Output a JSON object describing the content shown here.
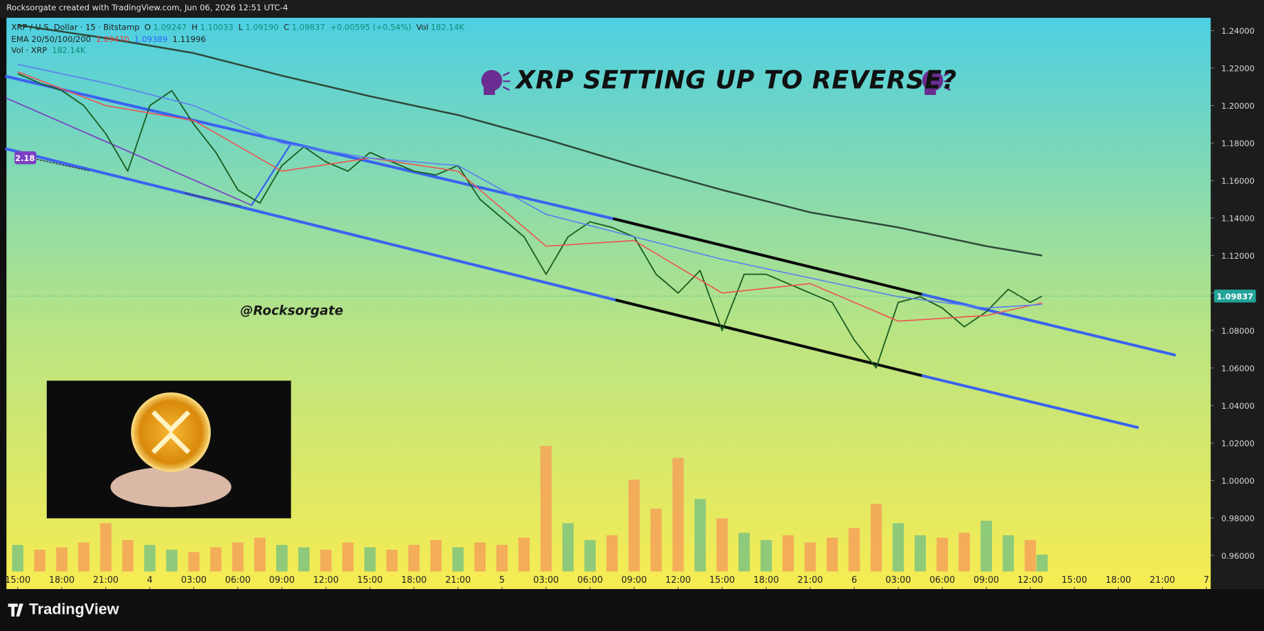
{
  "header": {
    "caption": "Rocksorgate created with TradingView.com, Jun 06, 2026 12:51 UTC-4"
  },
  "legend": {
    "symbol": "XRP / U.S. Dollar · 15 · Bitstamp",
    "o_label": "O",
    "open": "1.09247",
    "h_label": "H",
    "high": "1.10033",
    "l_label": "L",
    "low": "1.09190",
    "c_label": "C",
    "close": "1.09837",
    "change": "+0.00595 (+0.54%)",
    "vol_label": "Vol",
    "vol": "182.14K",
    "ema_label": "EMA 20/50/100/200",
    "ema1": "1.09470",
    "ema2": "1.09389",
    "ema3": "1.11996",
    "vol_series_label": "Vol · XRP",
    "vol_series_value": "182.14K"
  },
  "chart_data": {
    "type": "line",
    "title": "XRP SETTING UP TO REVERSE?",
    "annotations": [
      "@Rocksorgate",
      "2.18"
    ],
    "x": [
      0,
      1.5,
      3,
      4.5,
      6,
      7.5,
      9,
      10.5,
      12,
      13.5,
      15,
      16.5,
      18,
      19.5,
      21,
      22.5,
      24,
      25.5,
      27,
      28.5,
      30,
      31.5,
      33,
      34.5,
      36,
      37.5,
      39,
      40.5,
      42,
      43.5,
      45,
      46.5,
      48,
      49.5,
      51,
      52.5,
      54,
      55.5,
      57,
      58.5,
      60,
      61.5,
      63,
      64.5,
      66,
      67.5,
      69,
      69.8
    ],
    "xlim": [
      -0.77,
      81.3
    ],
    "xticks": [
      {
        "value": 0,
        "label": "15:00"
      },
      {
        "value": 3,
        "label": "18:00"
      },
      {
        "value": 6,
        "label": "21:00"
      },
      {
        "value": 9,
        "label": "4"
      },
      {
        "value": 12,
        "label": "03:00"
      },
      {
        "value": 15,
        "label": "06:00"
      },
      {
        "value": 18,
        "label": "09:00"
      },
      {
        "value": 21,
        "label": "12:00"
      },
      {
        "value": 24,
        "label": "15:00"
      },
      {
        "value": 27,
        "label": "18:00"
      },
      {
        "value": 30,
        "label": "21:00"
      },
      {
        "value": 33,
        "label": "5"
      },
      {
        "value": 36,
        "label": "03:00"
      },
      {
        "value": 39,
        "label": "06:00"
      },
      {
        "value": 42,
        "label": "09:00"
      },
      {
        "value": 45,
        "label": "12:00"
      },
      {
        "value": 48,
        "label": "15:00"
      },
      {
        "value": 51,
        "label": "18:00"
      },
      {
        "value": 54,
        "label": "21:00"
      },
      {
        "value": 57,
        "label": "6"
      },
      {
        "value": 60,
        "label": "03:00"
      },
      {
        "value": 63,
        "label": "06:00"
      },
      {
        "value": 66,
        "label": "09:00"
      },
      {
        "value": 69,
        "label": "12:00"
      },
      {
        "value": 72,
        "label": "15:00"
      },
      {
        "value": 75,
        "label": "18:00"
      },
      {
        "value": 78,
        "label": "21:00"
      },
      {
        "value": 81,
        "label": "7"
      }
    ],
    "ylim": [
      0.942,
      1.2469
    ],
    "yticks": [
      {
        "value": 0.96,
        "label": "0.96000"
      },
      {
        "value": 0.98,
        "label": "0.98000"
      },
      {
        "value": 1.0,
        "label": "1.00000"
      },
      {
        "value": 1.02,
        "label": "1.02000"
      },
      {
        "value": 1.04,
        "label": "1.04000"
      },
      {
        "value": 1.06,
        "label": "1.06000"
      },
      {
        "value": 1.08,
        "label": "1.08000"
      },
      {
        "value": 1.1,
        "label": "1.10000"
      },
      {
        "value": 1.12,
        "label": "1.12000"
      },
      {
        "value": 1.14,
        "label": "1.14000"
      },
      {
        "value": 1.16,
        "label": "1.16000"
      },
      {
        "value": 1.18,
        "label": "1.18000"
      },
      {
        "value": 1.2,
        "label": "1.20000"
      },
      {
        "value": 1.22,
        "label": "1.22000"
      },
      {
        "value": 1.24,
        "label": "1.24000"
      }
    ],
    "grid": false,
    "last_price": {
      "value": 1.09837,
      "label": "1.09837",
      "color": "#22a39a"
    },
    "series": [
      {
        "color": "#1b5e20",
        "values": [
          1.217,
          1.212,
          1.208,
          1.2,
          1.185,
          1.165,
          1.2,
          1.208,
          1.19,
          1.175,
          1.155,
          1.148,
          1.168,
          1.178,
          1.17,
          1.165,
          1.175,
          1.17,
          1.165,
          1.163,
          1.168,
          1.15,
          1.14,
          1.13,
          1.11,
          1.13,
          1.138,
          1.135,
          1.13,
          1.11,
          1.1,
          1.112,
          1.08,
          1.11,
          1.11,
          1.105,
          1.1,
          1.095,
          1.075,
          1.06,
          1.095,
          1.098,
          1.092,
          1.082,
          1.09,
          1.102,
          1.095,
          1.09837
        ]
      },
      {
        "color": "#ef5350",
        "x": [
          0,
          6,
          12,
          18,
          24,
          30,
          36,
          42,
          48,
          54,
          60,
          66,
          69.8
        ],
        "values": [
          1.218,
          1.2,
          1.192,
          1.165,
          1.172,
          1.165,
          1.125,
          1.128,
          1.1,
          1.105,
          1.085,
          1.088,
          1.0947
        ]
      },
      {
        "color": "#5b7ff0",
        "x": [
          0,
          6,
          12,
          18,
          24,
          30,
          36,
          42,
          48,
          54,
          60,
          66,
          69.8
        ],
        "values": [
          1.222,
          1.212,
          1.2,
          1.18,
          1.172,
          1.168,
          1.142,
          1.13,
          1.118,
          1.108,
          1.098,
          1.092,
          1.0939
        ]
      },
      {
        "color": "#2f4a3a",
        "x": [
          0,
          6,
          12,
          18,
          24,
          30,
          36,
          42,
          48,
          54,
          60,
          66,
          69.8
        ],
        "values": [
          1.243,
          1.236,
          1.228,
          1.216,
          1.205,
          1.195,
          1.182,
          1.168,
          1.155,
          1.143,
          1.135,
          1.125,
          1.12
        ]
      }
    ],
    "volume": {
      "ylim": [
        0,
        800
      ],
      "up_color": "#7cc47f",
      "down_color": "#f4a259",
      "values": [
        110,
        90,
        100,
        120,
        200,
        130,
        110,
        90,
        80,
        100,
        120,
        140,
        110,
        100,
        90,
        120,
        100,
        90,
        110,
        130,
        100,
        120,
        110,
        140,
        520,
        200,
        130,
        150,
        380,
        260,
        470,
        300,
        220,
        160,
        130,
        150,
        120,
        140,
        180,
        280,
        200,
        150,
        140,
        160,
        210,
        150,
        130,
        70
      ]
    }
  },
  "footer": {
    "brand": "TradingView"
  }
}
